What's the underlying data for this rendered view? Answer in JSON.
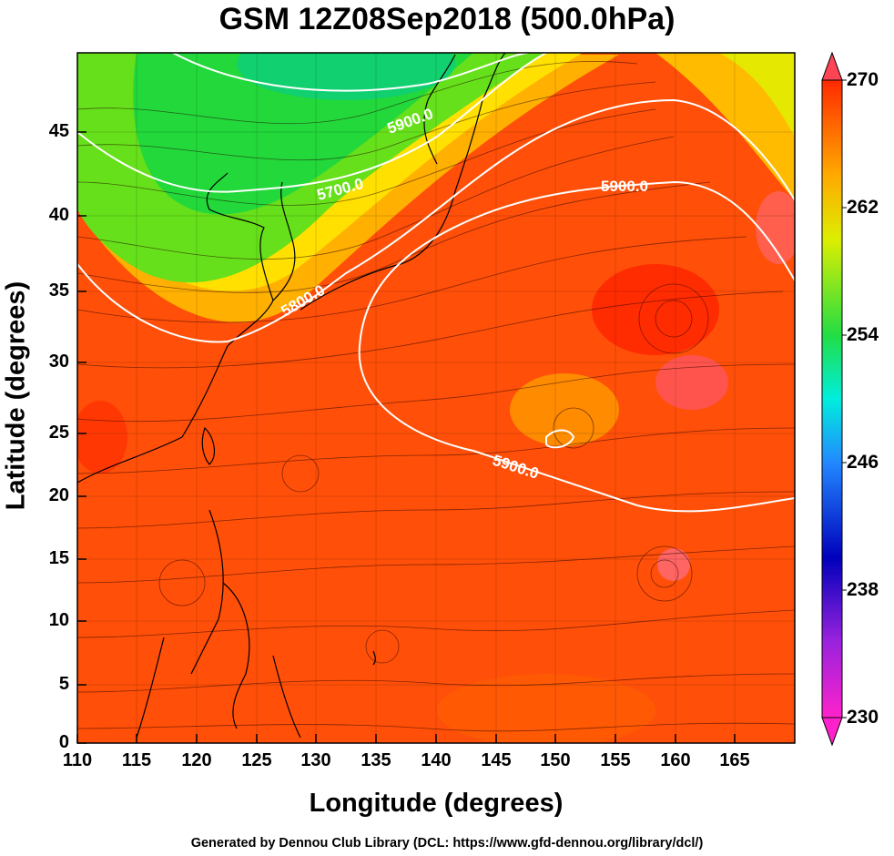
{
  "title": "GSM 12Z08Sep2018 (500.0hPa)",
  "xlabel": "Longitude (degrees)",
  "ylabel": "Latitude  (degrees)",
  "footer": "Generated by Dennou Club Library (DCL: https://www.gfd-dennou.org/library/dcl/)",
  "map": {
    "lon_range": [
      110,
      170
    ],
    "lat_range": [
      0,
      50
    ],
    "x_ticks": [
      "110",
      "115",
      "120",
      "125",
      "130",
      "135",
      "140",
      "145",
      "150",
      "155",
      "160",
      "165"
    ],
    "y_ticks": [
      "0",
      "5",
      "10",
      "15",
      "20",
      "25",
      "30",
      "35",
      "40",
      "45"
    ]
  },
  "colorbar": {
    "range": [
      230,
      270
    ],
    "tick_labels": [
      "270",
      "262",
      "254",
      "246",
      "238",
      "230"
    ]
  },
  "contour_labels": [
    "5900.0",
    "5700.0",
    "5800.0",
    "5900.0",
    "5900.0"
  ],
  "colors": {
    "warm": "#ff3b00",
    "mid": "#ffdd00",
    "cool": "#22dd22",
    "contour": "#ffffff"
  }
}
